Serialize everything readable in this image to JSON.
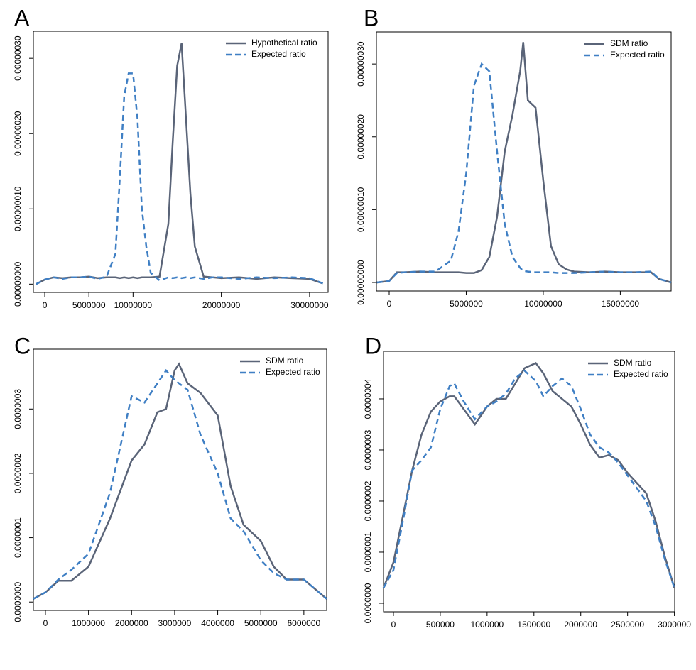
{
  "chart_data": [
    {
      "type": "line",
      "title": "A",
      "x": [
        -1000000,
        0,
        1000000,
        2000000,
        3000000,
        4000000,
        5000000,
        6000000,
        7000000,
        8000000,
        8500000,
        9000000,
        9500000,
        10000000,
        10500000,
        11000000,
        11500000,
        12000000,
        13000000,
        14000000,
        14500000,
        15000000,
        15500000,
        16000000,
        16500000,
        17000000,
        18000000,
        19000000,
        20000000,
        22000000,
        24000000,
        26000000,
        28000000,
        30000000,
        31500000
      ],
      "series": [
        {
          "name": "Hypothetical ratio",
          "color": "#5a6478",
          "linestyle": "solid",
          "values": [
            0,
            6e-09,
            9e-09,
            8e-09,
            9e-09,
            9e-09,
            1e-08,
            8e-09,
            9e-09,
            9e-09,
            8e-09,
            9e-09,
            8e-09,
            9e-09,
            8e-09,
            9e-09,
            9e-09,
            9e-09,
            1e-08,
            8e-08,
            1.9e-07,
            2.9e-07,
            3.2e-07,
            2.2e-07,
            1.2e-07,
            5e-08,
            1e-08,
            9e-09,
            8e-09,
            9e-09,
            7e-09,
            9e-09,
            8e-09,
            7e-09,
            1e-09
          ]
        },
        {
          "name": "Expected ratio",
          "color": "#3f7fc4",
          "linestyle": "dashed",
          "values": [
            0,
            6e-09,
            9e-09,
            7e-09,
            9e-09,
            9e-09,
            1e-08,
            7e-09,
            1e-08,
            4e-08,
            1.4e-07,
            2.5e-07,
            2.8e-07,
            2.8e-07,
            2.2e-07,
            1e-07,
            5e-08,
            1.5e-08,
            5e-09,
            9e-09,
            8e-09,
            9e-09,
            8e-09,
            9e-09,
            8e-09,
            9e-09,
            7e-09,
            9e-09,
            9e-09,
            7e-09,
            9e-09,
            8e-09,
            9e-09,
            8e-09,
            1e-09
          ]
        }
      ],
      "xlim": [
        -1290000,
        32100000
      ],
      "xticks": [
        0,
        5000000,
        10000000,
        20000000,
        30000000
      ],
      "ylim": [
        -1.1e-08,
        3.36e-07
      ],
      "yticks": [
        {
          "value": 0,
          "label": "0.00000000"
        },
        {
          "value": 1e-07,
          "label": "0.00000010"
        },
        {
          "value": 2e-07,
          "label": "0.00000020"
        },
        {
          "value": 3e-07,
          "label": "0.00000030"
        }
      ]
    },
    {
      "type": "line",
      "title": "B",
      "x": [
        -800000,
        0,
        500000,
        1000000,
        2000000,
        3000000,
        4000000,
        4500000,
        5000000,
        5500000,
        6000000,
        6500000,
        7000000,
        7500000,
        8000000,
        8500000,
        8700000,
        9000000,
        9500000,
        10000000,
        10500000,
        11000000,
        11500000,
        12000000,
        13000000,
        14000000,
        15000000,
        16000000,
        17000000,
        17500000,
        18300000
      ],
      "series": [
        {
          "name": "SDM ratio",
          "color": "#5a6478",
          "linestyle": "solid",
          "values": [
            0,
            2e-09,
            1.4e-08,
            1.4e-08,
            1.5e-08,
            1.4e-08,
            1.4e-08,
            1.4e-08,
            1.3e-08,
            1.3e-08,
            1.7e-08,
            3.5e-08,
            9e-08,
            1.8e-07,
            2.3e-07,
            2.9e-07,
            3.3e-07,
            2.5e-07,
            2.4e-07,
            1.4e-07,
            5e-08,
            2.5e-08,
            1.8e-08,
            1.5e-08,
            1.4e-08,
            1.5e-08,
            1.4e-08,
            1.4e-08,
            1.4e-08,
            5e-09,
            0
          ]
        },
        {
          "name": "Expected ratio",
          "color": "#3f7fc4",
          "linestyle": "dashed",
          "values": [
            0,
            2e-09,
            1.3e-08,
            1.4e-08,
            1.5e-08,
            1.5e-08,
            3e-08,
            7e-08,
            1.5e-07,
            2.7e-07,
            3e-07,
            2.9e-07,
            1.8e-07,
            8e-08,
            3.5e-08,
            2e-08,
            1.6e-08,
            1.5e-08,
            1.4e-08,
            1.4e-08,
            1.4e-08,
            1.3e-08,
            1.3e-08,
            1.3e-08,
            1.4e-08,
            1.5e-08,
            1.4e-08,
            1.4e-08,
            1.5e-08,
            5e-09,
            0
          ]
        }
      ],
      "xlim": [
        -830000,
        18300000
      ],
      "xticks": [
        0,
        5000000,
        10000000,
        15000000
      ],
      "ylim": [
        -1.17e-08,
        3.44e-07
      ],
      "yticks": [
        {
          "value": 0,
          "label": "0.00000000"
        },
        {
          "value": 1e-07,
          "label": "0.00000010"
        },
        {
          "value": 2e-07,
          "label": "0.00000020"
        },
        {
          "value": 3e-07,
          "label": "0.00000030"
        }
      ]
    },
    {
      "type": "line",
      "title": "C",
      "x": [
        -280000,
        0,
        300000,
        600000,
        1000000,
        1500000,
        2000000,
        2300000,
        2600000,
        2800000,
        3000000,
        3100000,
        3300000,
        3600000,
        4000000,
        4300000,
        4600000,
        5000000,
        5300000,
        5600000,
        6000000,
        6300000,
        6530000
      ],
      "series": [
        {
          "name": "SDM ratio",
          "color": "#5a6478",
          "linestyle": "solid",
          "values": [
            5e-09,
            1.5e-08,
            3.3e-08,
            3.3e-08,
            5.5e-08,
            1.3e-07,
            2.2e-07,
            2.45e-07,
            2.95e-07,
            3e-07,
            3.6e-07,
            3.7e-07,
            3.4e-07,
            3.25e-07,
            2.9e-07,
            1.8e-07,
            1.2e-07,
            9.5e-08,
            5.5e-08,
            3.5e-08,
            3.5e-08,
            1.8e-08,
            5e-09
          ]
        },
        {
          "name": "Expected ratio",
          "color": "#3f7fc4",
          "linestyle": "dashed",
          "values": [
            5e-09,
            1.5e-08,
            3.5e-08,
            5e-08,
            7.5e-08,
            1.7e-07,
            3.2e-07,
            3.1e-07,
            3.4e-07,
            3.6e-07,
            3.45e-07,
            3.4e-07,
            3.3e-07,
            2.6e-07,
            2e-07,
            1.3e-07,
            1.1e-07,
            6.5e-08,
            4.5e-08,
            3.5e-08,
            3.5e-08,
            1.8e-08,
            5e-09
          ]
        }
      ],
      "xlim": [
        -280000,
        6530000
      ],
      "xticks": [
        0,
        1000000,
        2000000,
        3000000,
        4000000,
        5000000,
        6000000
      ],
      "ylim": [
        -1.3e-08,
        3.93e-07
      ],
      "yticks": [
        {
          "value": 0,
          "label": "0.0000000"
        },
        {
          "value": 1e-07,
          "label": "0.0000001"
        },
        {
          "value": 2e-07,
          "label": "0.0000002"
        },
        {
          "value": 3e-07,
          "label": "0.0000003"
        }
      ]
    },
    {
      "type": "line",
      "title": "D",
      "x": [
        -106000,
        0,
        100000,
        200000,
        300000,
        400000,
        500000,
        600000,
        650000,
        750000,
        870000,
        1000000,
        1100000,
        1200000,
        1300000,
        1400000,
        1520000,
        1600000,
        1700000,
        1800000,
        1900000,
        2000000,
        2100000,
        2200000,
        2300000,
        2400000,
        2500000,
        2600000,
        2700000,
        2800000,
        2900000,
        3000000
      ],
      "series": [
        {
          "name": "SDM ratio",
          "color": "#5a6478",
          "linestyle": "solid",
          "values": [
            3e-08,
            8e-08,
            1.7e-07,
            2.6e-07,
            3.3e-07,
            3.75e-07,
            3.95e-07,
            4.05e-07,
            4.05e-07,
            3.8e-07,
            3.5e-07,
            3.85e-07,
            4e-07,
            4e-07,
            4.3e-07,
            4.6e-07,
            4.7e-07,
            4.5e-07,
            4.15e-07,
            4e-07,
            3.85e-07,
            3.5e-07,
            3.1e-07,
            2.85e-07,
            2.9e-07,
            2.8e-07,
            2.55e-07,
            2.35e-07,
            2.15e-07,
            1.6e-07,
            9e-08,
            3e-08
          ]
        },
        {
          "name": "Expected ratio",
          "color": "#3f7fc4",
          "linestyle": "dashed",
          "values": [
            3e-08,
            6.5e-08,
            1.6e-07,
            2.6e-07,
            2.8e-07,
            3.05e-07,
            3.8e-07,
            4.25e-07,
            4.3e-07,
            3.95e-07,
            3.6e-07,
            3.85e-07,
            3.95e-07,
            4.1e-07,
            4.4e-07,
            4.55e-07,
            4.35e-07,
            4.05e-07,
            4.25e-07,
            4.4e-07,
            4.25e-07,
            3.8e-07,
            3.3e-07,
            3.05e-07,
            2.95e-07,
            2.75e-07,
            2.5e-07,
            2.25e-07,
            2e-07,
            1.5e-07,
            8.5e-08,
            3e-08
          ]
        }
      ],
      "xlim": [
        -106000,
        3003000
      ],
      "xticks": [
        0,
        500000,
        1000000,
        1500000,
        2000000,
        2500000,
        3000000
      ],
      "ylim": [
        -1.67e-08,
        4.93e-07
      ],
      "yticks": [
        {
          "value": 0,
          "label": "0.0000000"
        },
        {
          "value": 1e-07,
          "label": "0.0000001"
        },
        {
          "value": 2e-07,
          "label": "0.0000002"
        },
        {
          "value": 3e-07,
          "label": "0.0000003"
        },
        {
          "value": 4e-07,
          "label": "0.0000004"
        }
      ]
    }
  ]
}
